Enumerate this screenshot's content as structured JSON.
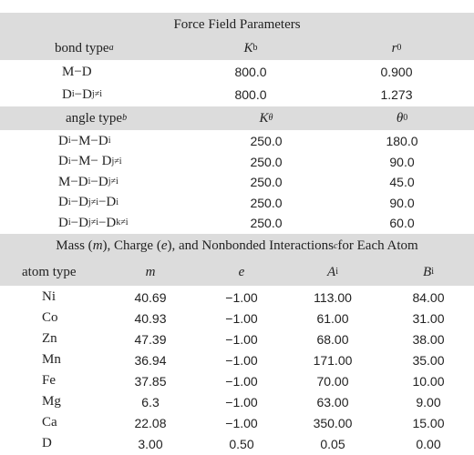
{
  "title": "Force Field Parameters",
  "bond_header": {
    "label": "bond type",
    "note": "a",
    "k_main": "K",
    "k_sub": "b",
    "r_main": "r",
    "r_sub": "0"
  },
  "bond_rows": [
    {
      "type_html": "M−D",
      "k": "800.0",
      "r": "0.900"
    },
    {
      "type_html": "D<sub>i</sub>−D<sub>j≠i</sub>",
      "k": "800.0",
      "r": "1.273"
    }
  ],
  "angle_header": {
    "label": "angle type",
    "note": "b",
    "k_main": "K",
    "k_sub": "θ",
    "theta_main": "θ",
    "theta_sub": "0"
  },
  "angle_rows": [
    {
      "type_html": "D<sub>i</sub>−M−D<sub>i</sub>",
      "k": "250.0",
      "theta": "180.0"
    },
    {
      "type_html": "D<sub>i</sub>−M− D<sub>j≠i</sub>",
      "k": "250.0",
      "theta": "90.0"
    },
    {
      "type_html": "M−D<sub>i</sub>−D<sub>j≠i</sub>",
      "k": "250.0",
      "theta": "45.0"
    },
    {
      "type_html": "D<sub>i</sub>−D<sub>j≠i</sub>−D<sub>i</sub>",
      "k": "250.0",
      "theta": "90.0"
    },
    {
      "type_html": "D<sub>i</sub>−D<sub>j≠i</sub>−D<sub>k≠i</sub>",
      "k": "250.0",
      "theta": "60.0"
    }
  ],
  "mass_header_html": "Mass (<i>m</i>), Charge (<i>e</i>), and Nonbonded Interactions<sup><i>c</i></sup> for Each Atom",
  "atom_header": {
    "type": "atom type",
    "m": "m",
    "e": "e",
    "a_main": "A",
    "a_sub": "i",
    "b_main": "B",
    "b_sub": "i"
  },
  "atom_rows": [
    {
      "type": "Ni",
      "m": "40.69",
      "e": "−1.00",
      "a": "113.00",
      "b": "84.00"
    },
    {
      "type": "Co",
      "m": "40.93",
      "e": "−1.00",
      "a": "61.00",
      "b": "31.00"
    },
    {
      "type": "Zn",
      "m": "47.39",
      "e": "−1.00",
      "a": "68.00",
      "b": "38.00"
    },
    {
      "type": "Mn",
      "m": "36.94",
      "e": "−1.00",
      "a": "171.00",
      "b": "35.00"
    },
    {
      "type": "Fe",
      "m": "37.85",
      "e": "−1.00",
      "a": "70.00",
      "b": "10.00"
    },
    {
      "type": "Mg",
      "m": "6.3",
      "e": "−1.00",
      "a": "63.00",
      "b": "9.00"
    },
    {
      "type": "Ca",
      "m": "22.08",
      "e": "−1.00",
      "a": "350.00",
      "b": "15.00"
    },
    {
      "type": "D",
      "m": "3.00",
      "e": "0.50",
      "a": "0.05",
      "b": "0.00"
    }
  ]
}
